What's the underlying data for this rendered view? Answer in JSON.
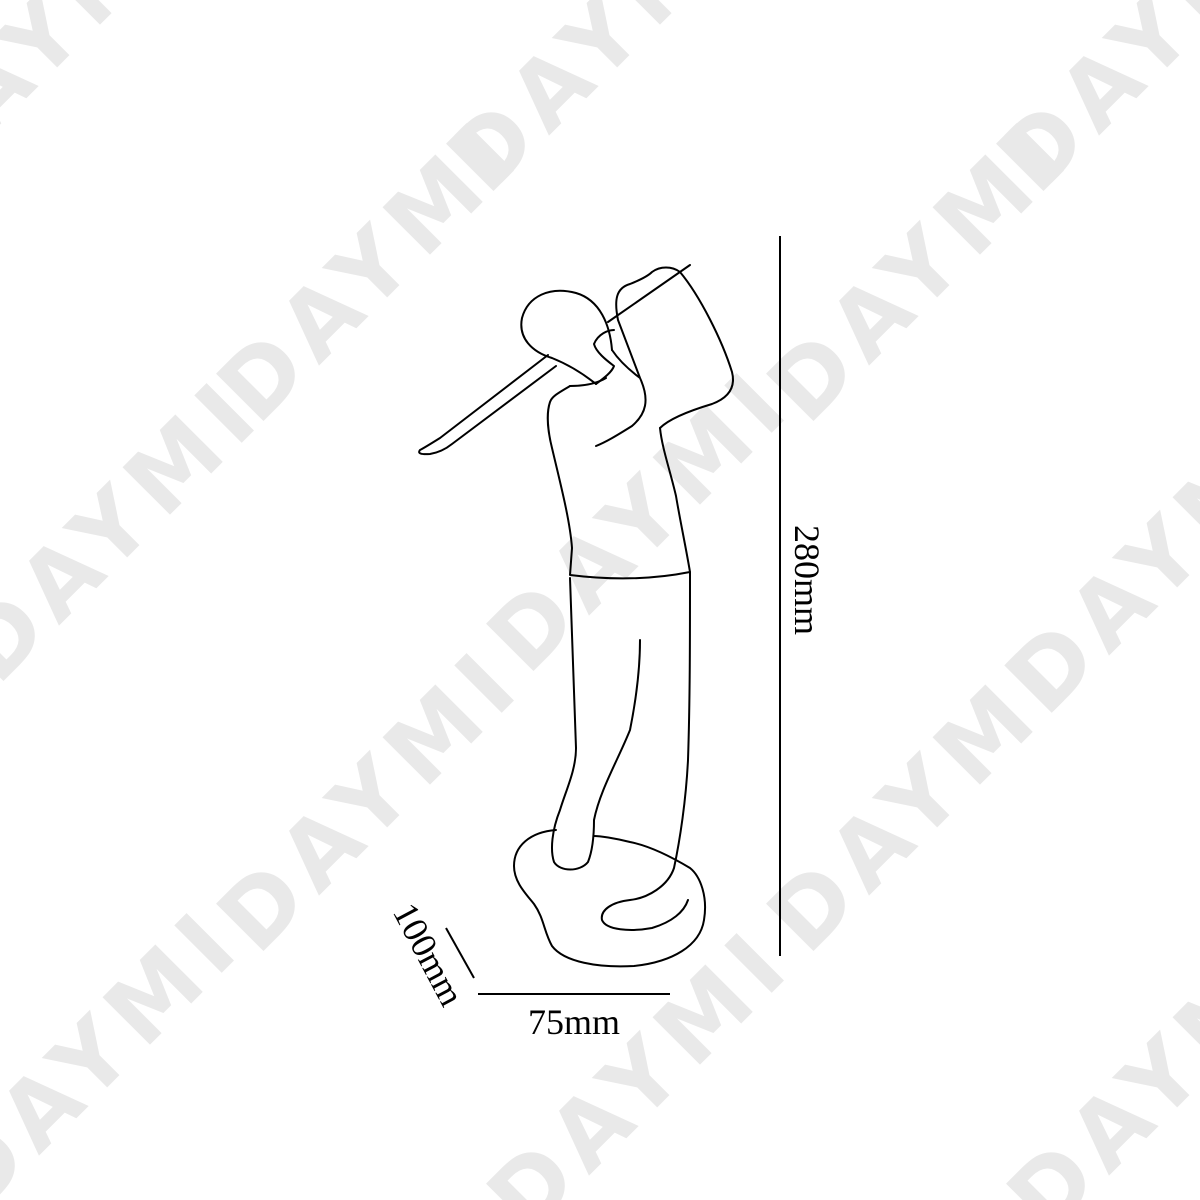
{
  "watermark": {
    "text": "DAYMI",
    "color": "#e9e9e9"
  },
  "dimensions": {
    "height_label": "280mm",
    "width_label": "75mm",
    "depth_label": "100mm"
  },
  "figure": {
    "subject": "golfer-figurine-outline",
    "stroke_color": "#000000"
  }
}
